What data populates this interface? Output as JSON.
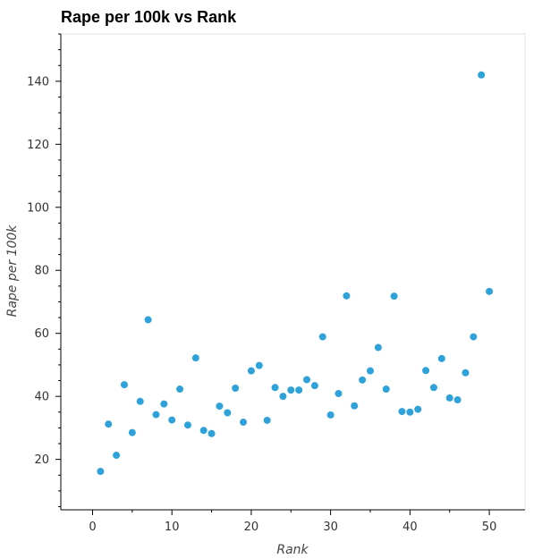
{
  "chart_data": {
    "type": "scatter",
    "title": "Rape per 100k vs Rank",
    "xlabel": "Rank",
    "ylabel": "Rape per 100k",
    "xlim": [
      -4,
      54.5
    ],
    "ylim": [
      4,
      155
    ],
    "x_ticks": [
      0,
      10,
      20,
      30,
      40,
      50
    ],
    "y_ticks": [
      20,
      40,
      60,
      80,
      100,
      120,
      140
    ],
    "grid": false,
    "colors": {
      "point": "#30a2da",
      "frame": "#e5e5e5",
      "axis": "#000000"
    },
    "series": [
      {
        "x": [
          1,
          2,
          3,
          4,
          5,
          6,
          7,
          8,
          9,
          10,
          11,
          12,
          13,
          14,
          15,
          16,
          17,
          18,
          19,
          20,
          21,
          22,
          23,
          24,
          25,
          26,
          27,
          28,
          29,
          30,
          31,
          32,
          33,
          34,
          35,
          36,
          37,
          38,
          39,
          40,
          41,
          42,
          43,
          44,
          45,
          46,
          47,
          48,
          49,
          50
        ],
        "y": [
          16.2,
          31.2,
          21.3,
          43.7,
          28.5,
          38.4,
          64.3,
          34.2,
          37.6,
          32.5,
          42.3,
          30.9,
          52.2,
          29.2,
          28.2,
          36.9,
          34.8,
          42.6,
          31.8,
          48.1,
          49.8,
          32.4,
          42.8,
          40.0,
          42.0,
          42.0,
          45.3,
          43.4,
          58.9,
          34.1,
          40.9,
          71.9,
          37.0,
          45.2,
          48.1,
          55.5,
          42.3,
          71.8,
          35.2,
          35.0,
          35.9,
          48.2,
          42.8,
          52.0,
          39.5,
          38.9,
          47.5,
          58.9,
          142.0,
          73.3
        ]
      }
    ]
  }
}
